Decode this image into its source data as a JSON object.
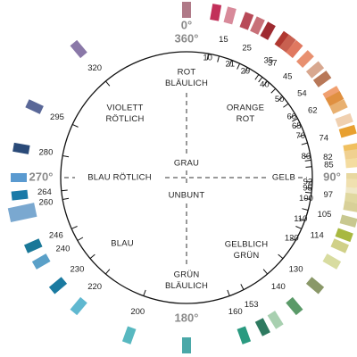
{
  "wheel": {
    "cardinal": {
      "top": [
        "0°",
        "360°"
      ],
      "right": "90°",
      "bottom": "180°",
      "left": "270°"
    },
    "sectors": [
      {
        "lines": [
          "ROT",
          "BLÄULICH"
        ]
      },
      {
        "lines": [
          "ORANGE",
          "ROT"
        ]
      },
      {
        "lines": [
          "VIOLETT",
          "RÖTLICH"
        ]
      },
      {
        "lines": [
          "GRAU"
        ]
      },
      {
        "lines": [
          "UNBUNT"
        ]
      },
      {
        "lines": [
          "BLAU RÖTLICH"
        ]
      },
      {
        "lines": [
          "GELB"
        ]
      },
      {
        "lines": [
          "BLAU"
        ]
      },
      {
        "lines": [
          "GELBLICH",
          "GRÜN"
        ]
      },
      {
        "lines": [
          "GRÜN",
          "BLÄULICH"
        ]
      }
    ],
    "hues": [
      10,
      15,
      21,
      25,
      29,
      35,
      37,
      40,
      45,
      50,
      54,
      60,
      62,
      65,
      70,
      74,
      80,
      82,
      85,
      92,
      95,
      97,
      100,
      105,
      110,
      114,
      120,
      130,
      140,
      153,
      160,
      200,
      220,
      230,
      240,
      246,
      260,
      264,
      280,
      295,
      320
    ]
  }
}
